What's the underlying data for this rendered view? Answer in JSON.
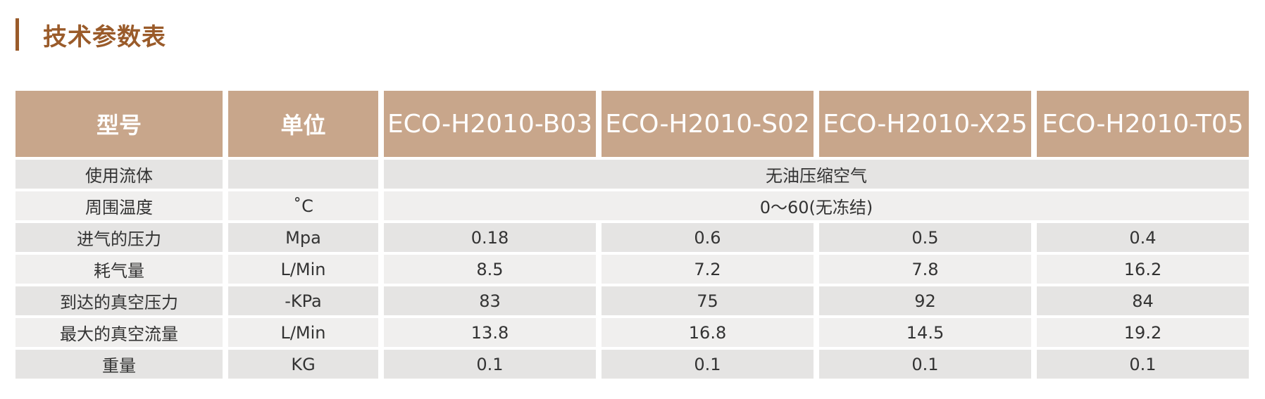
{
  "title": "技术参数表",
  "table": {
    "headers": {
      "model_label": "型号",
      "unit_label": "单位",
      "models": [
        "ECO-H2010-B03",
        "ECO-H2010-S02",
        "ECO-H2010-X25",
        "ECO-H2010-T05"
      ]
    },
    "rows": [
      {
        "label": "使用流体",
        "unit": "",
        "merged": true,
        "value": "无油压缩空气"
      },
      {
        "label": "周围温度",
        "unit": "˚C",
        "merged": true,
        "value": "0～60(无冻结)"
      },
      {
        "label": "进气的压力",
        "unit": "Mpa",
        "merged": false,
        "values": [
          "0.18",
          "0.6",
          "0.5",
          "0.4"
        ]
      },
      {
        "label": "耗气量",
        "unit": "L/Min",
        "merged": false,
        "values": [
          "8.5",
          "7.2",
          "7.8",
          "16.2"
        ]
      },
      {
        "label": "到达的真空压力",
        "unit": "-KPa",
        "merged": false,
        "values": [
          "83",
          "75",
          "92",
          "84"
        ]
      },
      {
        "label": "最大的真空流量",
        "unit": "L/Min",
        "merged": false,
        "values": [
          "13.8",
          "16.8",
          "14.5",
          "19.2"
        ]
      },
      {
        "label": "重量",
        "unit": "KG",
        "merged": false,
        "values": [
          "0.1",
          "0.1",
          "0.1",
          "0.1"
        ]
      }
    ]
  },
  "colors": {
    "accent": "#9a5b2a",
    "header_bg": "#c8a68b",
    "row_odd": "#e5e4e3",
    "row_even": "#f0efee"
  }
}
